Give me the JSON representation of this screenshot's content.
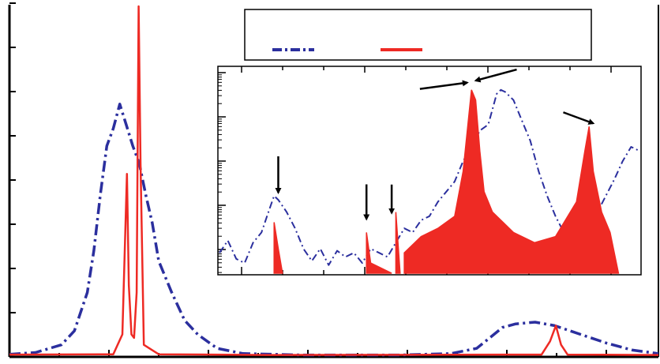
{
  "chart_data": [
    {
      "type": "line",
      "title": "",
      "xlabel": "",
      "ylabel": "",
      "xlim": [
        0,
        100
      ],
      "ylim": [
        0,
        1
      ],
      "grid": false,
      "legend": "top-right",
      "colors": {
        "dashdot": "#2b2f9e",
        "solid": "#ee2a24"
      },
      "series": [
        {
          "style": "dash-dot",
          "color": "#2b2f9e",
          "points": [
            [
              0,
              0.003
            ],
            [
              4,
              0.008
            ],
            [
              8,
              0.03
            ],
            [
              10,
              0.07
            ],
            [
              12,
              0.18
            ],
            [
              13,
              0.3
            ],
            [
              14,
              0.46
            ],
            [
              15,
              0.6
            ],
            [
              16,
              0.65
            ],
            [
              17,
              0.72
            ],
            [
              18,
              0.66
            ],
            [
              19,
              0.6
            ],
            [
              20,
              0.55
            ],
            [
              21,
              0.46
            ],
            [
              22,
              0.38
            ],
            [
              23,
              0.27
            ],
            [
              25,
              0.18
            ],
            [
              27,
              0.1
            ],
            [
              29,
              0.06
            ],
            [
              32,
              0.02
            ],
            [
              36,
              0.005
            ],
            [
              45,
              0.001
            ],
            [
              60,
              0.001
            ],
            [
              68,
              0.005
            ],
            [
              72,
              0.02
            ],
            [
              76,
              0.08
            ],
            [
              78,
              0.09
            ],
            [
              81,
              0.095
            ],
            [
              84,
              0.085
            ],
            [
              88,
              0.06
            ],
            [
              92,
              0.035
            ],
            [
              96,
              0.015
            ],
            [
              100,
              0.005
            ]
          ]
        },
        {
          "style": "solid",
          "color": "#ee2a24",
          "points": [
            [
              0,
              0.002
            ],
            [
              16,
              0.003
            ],
            [
              17.4,
              0.06
            ],
            [
              18.1,
              0.52
            ],
            [
              18.4,
              0.2
            ],
            [
              18.8,
              0.06
            ],
            [
              19.2,
              0.05
            ],
            [
              19.6,
              0.18
            ],
            [
              19.9,
              1.0
            ],
            [
              20.2,
              0.55
            ],
            [
              20.7,
              0.03
            ],
            [
              22,
              0.015
            ],
            [
              23,
              0.003
            ],
            [
              40,
              0.001
            ],
            [
              82,
              0.002
            ],
            [
              83.3,
              0.04
            ],
            [
              84.2,
              0.085
            ],
            [
              85,
              0.03
            ],
            [
              86,
              0.002
            ],
            [
              100,
              0.001
            ]
          ]
        }
      ]
    },
    {
      "type": "line",
      "title": "",
      "xlabel": "",
      "ylabel": "",
      "xlim": [
        0,
        100
      ],
      "ylim": [
        0,
        1
      ],
      "yscale": "log",
      "grid": false,
      "series": [
        {
          "style": "dash-dot",
          "color": "#2b2f9e",
          "points": [
            [
              0,
              0.1
            ],
            [
              2,
              0.16
            ],
            [
              4,
              0.07
            ],
            [
              6,
              0.05
            ],
            [
              8,
              0.15
            ],
            [
              10,
              0.2
            ],
            [
              12,
              0.32
            ],
            [
              13,
              0.38
            ],
            [
              14,
              0.36
            ],
            [
              16,
              0.3
            ],
            [
              18,
              0.22
            ],
            [
              20,
              0.12
            ],
            [
              22,
              0.06
            ],
            [
              24,
              0.12
            ],
            [
              26,
              0.04
            ],
            [
              28,
              0.11
            ],
            [
              30,
              0.08
            ],
            [
              32,
              0.1
            ],
            [
              34,
              0.05
            ],
            [
              36,
              0.12
            ],
            [
              38,
              0.1
            ],
            [
              40,
              0.08
            ],
            [
              42,
              0.15
            ],
            [
              44,
              0.22
            ],
            [
              46,
              0.2
            ],
            [
              48,
              0.26
            ],
            [
              50,
              0.28
            ],
            [
              52,
              0.35
            ],
            [
              54,
              0.4
            ],
            [
              56,
              0.45
            ],
            [
              58,
              0.55
            ],
            [
              60,
              0.62
            ],
            [
              62,
              0.7
            ],
            [
              64,
              0.73
            ],
            [
              66,
              0.88
            ],
            [
              67,
              0.9
            ],
            [
              68,
              0.89
            ],
            [
              70,
              0.85
            ],
            [
              72,
              0.75
            ],
            [
              74,
              0.65
            ],
            [
              76,
              0.5
            ],
            [
              78,
              0.38
            ],
            [
              80,
              0.28
            ],
            [
              82,
              0.2
            ],
            [
              84,
              0.14
            ],
            [
              86,
              0.18
            ],
            [
              88,
              0.24
            ],
            [
              90,
              0.3
            ],
            [
              92,
              0.38
            ],
            [
              94,
              0.46
            ],
            [
              96,
              0.55
            ],
            [
              98,
              0.62
            ],
            [
              100,
              0.6
            ]
          ]
        },
        {
          "style": "solid",
          "color": "#ee2a24",
          "points": [
            [
              12,
              0.02
            ],
            [
              13,
              0.25
            ],
            [
              14,
              0.12
            ],
            [
              15,
              0.02
            ],
            [
              34,
              0.02
            ],
            [
              35,
              0.2
            ],
            [
              36,
              0.05
            ],
            [
              41,
              0.02
            ],
            [
              42,
              0.3
            ],
            [
              43,
              0.02
            ],
            [
              44,
              0.1
            ],
            [
              48,
              0.18
            ],
            [
              52,
              0.22
            ],
            [
              56,
              0.28
            ],
            [
              58,
              0.5
            ],
            [
              59,
              0.7
            ],
            [
              60,
              0.9
            ],
            [
              61,
              0.85
            ],
            [
              62,
              0.6
            ],
            [
              63,
              0.4
            ],
            [
              65,
              0.3
            ],
            [
              70,
              0.2
            ],
            [
              75,
              0.15
            ],
            [
              80,
              0.18
            ],
            [
              85,
              0.35
            ],
            [
              87,
              0.6
            ],
            [
              88,
              0.72
            ],
            [
              89,
              0.5
            ],
            [
              91,
              0.3
            ],
            [
              93,
              0.2
            ],
            [
              95,
              0.02
            ]
          ]
        }
      ],
      "annotations": [
        {
          "type": "arrow",
          "x": 14,
          "y": 0.38
        },
        {
          "type": "arrow",
          "x": 35,
          "y": 0.25
        },
        {
          "type": "arrow",
          "x": 41,
          "y": 0.28
        },
        {
          "type": "arrow",
          "x": 59,
          "y": 0.92
        },
        {
          "type": "arrow",
          "x": 61,
          "y": 0.93
        },
        {
          "type": "arrow",
          "x": 89,
          "y": 0.72
        }
      ]
    }
  ]
}
